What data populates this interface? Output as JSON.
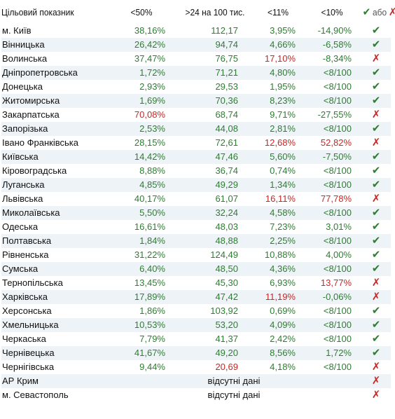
{
  "header": {
    "col0": "Цільовий показник",
    "col1": "<50%",
    "col2": ">24 на 100 тис.",
    "col3": "<11%",
    "col4": "<10%",
    "legend_word": "або"
  },
  "colors": {
    "green": "#2e7d32",
    "red": "#c62828",
    "stripe": "#eef3f8"
  },
  "icons": {
    "ok": "check-mark-icon",
    "fail": "cross-mark-icon"
  },
  "rows": [
    {
      "region": "м. Київ",
      "v1": "38,16%",
      "v2": "112,17",
      "v3": "3,95%",
      "v4": "-14,90%",
      "c1": "g",
      "c2": "g",
      "c3": "g",
      "c4": "g",
      "mark": "check"
    },
    {
      "region": "Вінницька",
      "v1": "26,42%",
      "v2": "94,74",
      "v3": "4,66%",
      "v4": "-6,58%",
      "c1": "g",
      "c2": "g",
      "c3": "g",
      "c4": "g",
      "mark": "check"
    },
    {
      "region": "Волинська",
      "v1": "37,47%",
      "v2": "76,75",
      "v3": "17,10%",
      "v4": "-8,34%",
      "c1": "g",
      "c2": "g",
      "c3": "r",
      "c4": "g",
      "mark": "cross"
    },
    {
      "region": "Дніпропетровська",
      "v1": "1,72%",
      "v2": "71,21",
      "v3": "4,80%",
      "v4": "<8/100",
      "c1": "g",
      "c2": "g",
      "c3": "g",
      "c4": "g",
      "mark": "check"
    },
    {
      "region": "Донецька",
      "v1": "2,93%",
      "v2": "29,53",
      "v3": "1,95%",
      "v4": "<8/100",
      "c1": "g",
      "c2": "g",
      "c3": "g",
      "c4": "g",
      "mark": "check"
    },
    {
      "region": "Житомирська",
      "v1": "1,69%",
      "v2": "70,36",
      "v3": "8,23%",
      "v4": "<8/100",
      "c1": "g",
      "c2": "g",
      "c3": "g",
      "c4": "g",
      "mark": "check"
    },
    {
      "region": "Закарпатська",
      "v1": "70,08%",
      "v2": "68,74",
      "v3": "9,71%",
      "v4": "-27,55%",
      "c1": "r",
      "c2": "g",
      "c3": "g",
      "c4": "g",
      "mark": "cross"
    },
    {
      "region": "Запорізька",
      "v1": "2,53%",
      "v2": "44,08",
      "v3": "2,81%",
      "v4": "<8/100",
      "c1": "g",
      "c2": "g",
      "c3": "g",
      "c4": "g",
      "mark": "check"
    },
    {
      "region": "Івано Франківська",
      "v1": "28,15%",
      "v2": "72,61",
      "v3": "12,68%",
      "v4": "52,82%",
      "c1": "g",
      "c2": "g",
      "c3": "r",
      "c4": "r",
      "mark": "cross"
    },
    {
      "region": "Київська",
      "v1": "14,42%",
      "v2": "47,46",
      "v3": "5,60%",
      "v4": "-7,50%",
      "c1": "g",
      "c2": "g",
      "c3": "g",
      "c4": "g",
      "mark": "check"
    },
    {
      "region": "Кіровоградська",
      "v1": "8,88%",
      "v2": "36,74",
      "v3": "0,74%",
      "v4": "<8/100",
      "c1": "g",
      "c2": "g",
      "c3": "g",
      "c4": "g",
      "mark": "check"
    },
    {
      "region": "Луганська",
      "v1": "4,85%",
      "v2": "49,29",
      "v3": "1,34%",
      "v4": "<8/100",
      "c1": "g",
      "c2": "g",
      "c3": "g",
      "c4": "g",
      "mark": "check"
    },
    {
      "region": "Львівська",
      "v1": "40,17%",
      "v2": "61,07",
      "v3": "16,11%",
      "v4": "77,78%",
      "c1": "g",
      "c2": "g",
      "c3": "r",
      "c4": "r",
      "mark": "cross"
    },
    {
      "region": "Миколаївська",
      "v1": "5,50%",
      "v2": "32,24",
      "v3": "4,58%",
      "v4": "<8/100",
      "c1": "g",
      "c2": "g",
      "c3": "g",
      "c4": "g",
      "mark": "check"
    },
    {
      "region": "Одеська",
      "v1": "16,61%",
      "v2": "48,03",
      "v3": "7,23%",
      "v4": "3,01%",
      "c1": "g",
      "c2": "g",
      "c3": "g",
      "c4": "g",
      "mark": "check"
    },
    {
      "region": "Полтавська",
      "v1": "1,84%",
      "v2": "48,88",
      "v3": "2,25%",
      "v4": "<8/100",
      "c1": "g",
      "c2": "g",
      "c3": "g",
      "c4": "g",
      "mark": "check"
    },
    {
      "region": "Рівненська",
      "v1": "31,22%",
      "v2": "124,49",
      "v3": "10,88%",
      "v4": "4,00%",
      "c1": "g",
      "c2": "g",
      "c3": "g",
      "c4": "g",
      "mark": "check"
    },
    {
      "region": "Сумська",
      "v1": "6,40%",
      "v2": "48,50",
      "v3": "4,36%",
      "v4": "<8/100",
      "c1": "g",
      "c2": "g",
      "c3": "g",
      "c4": "g",
      "mark": "check"
    },
    {
      "region": "Тернопільська",
      "v1": "13,45%",
      "v2": "45,30",
      "v3": "6,93%",
      "v4": "13,77%",
      "c1": "g",
      "c2": "g",
      "c3": "g",
      "c4": "r",
      "mark": "cross"
    },
    {
      "region": "Харківська",
      "v1": "17,89%",
      "v2": "47,42",
      "v3": "11,19%",
      "v4": "-0,06%",
      "c1": "g",
      "c2": "g",
      "c3": "r",
      "c4": "g",
      "mark": "cross"
    },
    {
      "region": "Херсонська",
      "v1": "1,86%",
      "v2": "103,92",
      "v3": "0,69%",
      "v4": "<8/100",
      "c1": "g",
      "c2": "g",
      "c3": "g",
      "c4": "g",
      "mark": "check"
    },
    {
      "region": "Хмельницька",
      "v1": "10,53%",
      "v2": "53,20",
      "v3": "4,09%",
      "v4": "<8/100",
      "c1": "g",
      "c2": "g",
      "c3": "g",
      "c4": "g",
      "mark": "check"
    },
    {
      "region": "Черкаська",
      "v1": "7,79%",
      "v2": "41,37",
      "v3": "2,42%",
      "v4": "<8/100",
      "c1": "g",
      "c2": "g",
      "c3": "g",
      "c4": "g",
      "mark": "check"
    },
    {
      "region": "Чернівецька",
      "v1": "41,67%",
      "v2": "49,20",
      "v3": "8,56%",
      "v4": "1,72%",
      "c1": "g",
      "c2": "g",
      "c3": "g",
      "c4": "g",
      "mark": "check"
    },
    {
      "region": "Чернігівська",
      "v1": "9,44%",
      "v2": "20,69",
      "v3": "4,18%",
      "v4": "<8/100",
      "c1": "g",
      "c2": "r",
      "c3": "g",
      "c4": "g",
      "mark": "cross"
    }
  ],
  "na_rows": [
    {
      "region": "АР Крим",
      "text": "відсутні дані",
      "mark": "cross"
    },
    {
      "region": "м. Севастополь",
      "text": "відсутні дані",
      "mark": "cross"
    }
  ]
}
